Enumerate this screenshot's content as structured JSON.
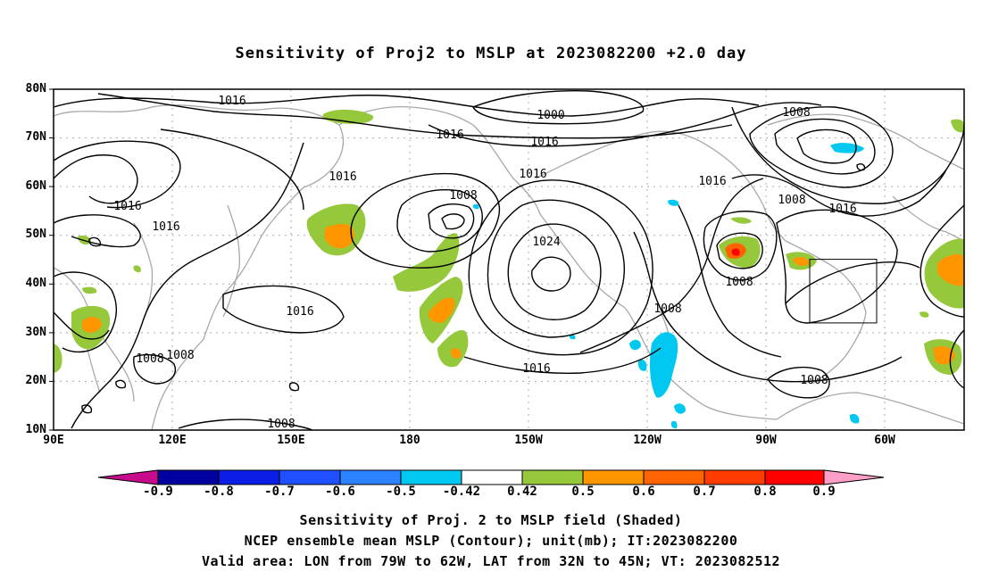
{
  "title": "Sensitivity of Proj2 to MSLP at 2023082200 +2.0 day",
  "lat_labels": [
    "80N",
    "70N",
    "60N",
    "50N",
    "40N",
    "30N",
    "20N",
    "10N"
  ],
  "lon_labels": [
    "90E",
    "120E",
    "150E",
    "180",
    "150W",
    "120W",
    "90W",
    "60W"
  ],
  "contour_labels": [
    "1016",
    "1016",
    "1016",
    "1016",
    "1016",
    "1016",
    "1016",
    "1016",
    "1016",
    "1016",
    "1000",
    "1008",
    "1008",
    "1008",
    "1008",
    "1008",
    "1008",
    "1008",
    "1024",
    "1008",
    "1008",
    "1008"
  ],
  "colorbar": {
    "labels": [
      "-0.9",
      "-0.8",
      "-0.7",
      "-0.6",
      "-0.5",
      "-0.42",
      "0.42",
      "0.5",
      "0.6",
      "0.7",
      "0.8",
      "0.9"
    ],
    "colors": [
      "#c80a8c",
      "#0000a0",
      "#0a1ee6",
      "#1e50ff",
      "#2d82ff",
      "#00c8f0",
      "#ffffff",
      "#96c83c",
      "#ff9600",
      "#ff6400",
      "#ff3c00",
      "#ff0000",
      "#ff9ec8"
    ]
  },
  "captions": [
    "Sensitivity of Proj. 2 to MSLP field (Shaded)",
    "NCEP ensemble mean MSLP (Contour); unit(mb); IT:2023082200",
    "Valid area: LON from 79W to 62W, LAT from 32N to 45N; VT: 2023082512"
  ]
}
